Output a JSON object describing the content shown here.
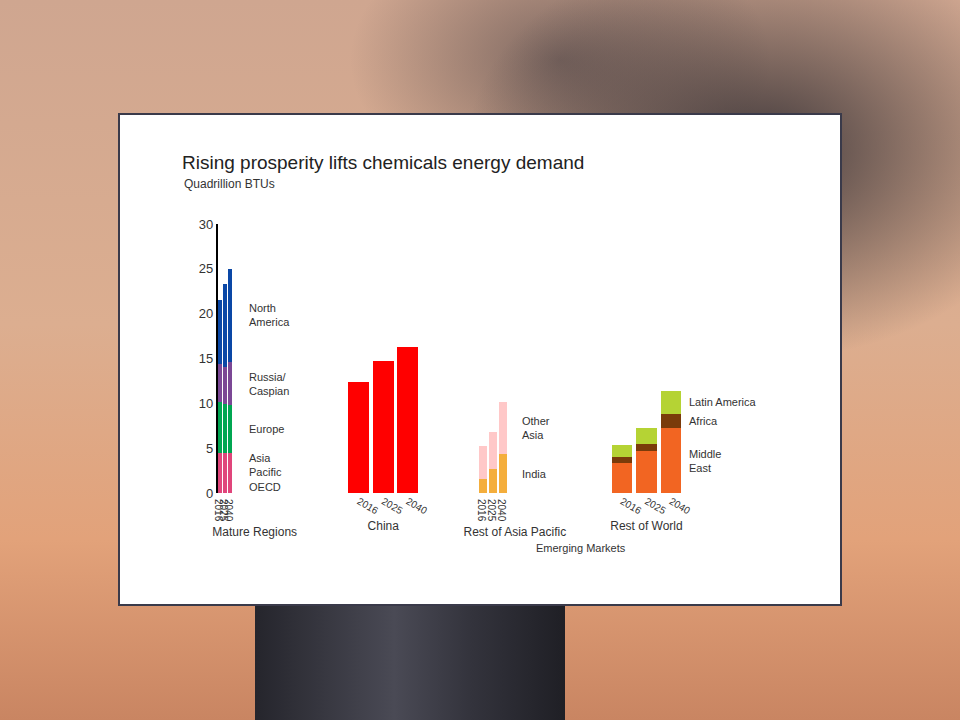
{
  "chart_data": {
    "type": "bar",
    "stacked": true,
    "title": "Rising prosperity lifts chemicals energy demand",
    "subtitle": "Quadrillion BTUs",
    "ylim": [
      0,
      30
    ],
    "yticks": [
      0,
      5,
      10,
      15,
      20,
      25,
      30
    ],
    "grid": false,
    "panels": [
      {
        "xlabel": "Mature Regions",
        "categories": [
          "2016",
          "2025",
          "2040"
        ],
        "series": [
          {
            "name": "Asia Pacific OECD",
            "color": "#e0457b",
            "values": [
              4.5,
              4.5,
              4.5
            ]
          },
          {
            "name": "Europe",
            "color": "#00a651",
            "values": [
              5.7,
              5.4,
              5.3
            ]
          },
          {
            "name": "Russia/Caspian",
            "color": "#7b4795",
            "values": [
              4.2,
              4.2,
              4.8
            ]
          },
          {
            "name": "North America",
            "color": "#0a47a6",
            "values": [
              7.1,
              9.2,
              10.4
            ]
          }
        ]
      },
      {
        "xlabel": "China",
        "categories": [
          "2016",
          "2025",
          "2040"
        ],
        "series": [
          {
            "color": "#ff0000",
            "values": [
              12.4,
              14.7,
              16.3
            ]
          }
        ]
      },
      {
        "xlabel": "Rest of Asia Pacific",
        "group": "Emerging Markets",
        "categories": [
          "2016",
          "2025",
          "2040"
        ],
        "series": [
          {
            "name": "India",
            "color": "#f4ae3c",
            "values": [
              1.6,
              2.7,
              4.3
            ]
          },
          {
            "name": "Other Asia",
            "color": "#ffc8c8",
            "values": [
              3.6,
              4.1,
              5.8
            ]
          }
        ]
      },
      {
        "xlabel": "Rest of World",
        "group": "Emerging Markets",
        "categories": [
          "2016",
          "2025",
          "2040"
        ],
        "series": [
          {
            "name": "Middle East",
            "color": "#f26522",
            "values": [
              3.4,
              4.7,
              7.2
            ]
          },
          {
            "name": "Africa",
            "color": "#7a3b0a",
            "values": [
              0.6,
              0.8,
              1.6
            ]
          },
          {
            "name": "Latin America",
            "color": "#b5d334",
            "values": [
              1.3,
              1.7,
              2.6
            ]
          }
        ]
      }
    ]
  }
}
